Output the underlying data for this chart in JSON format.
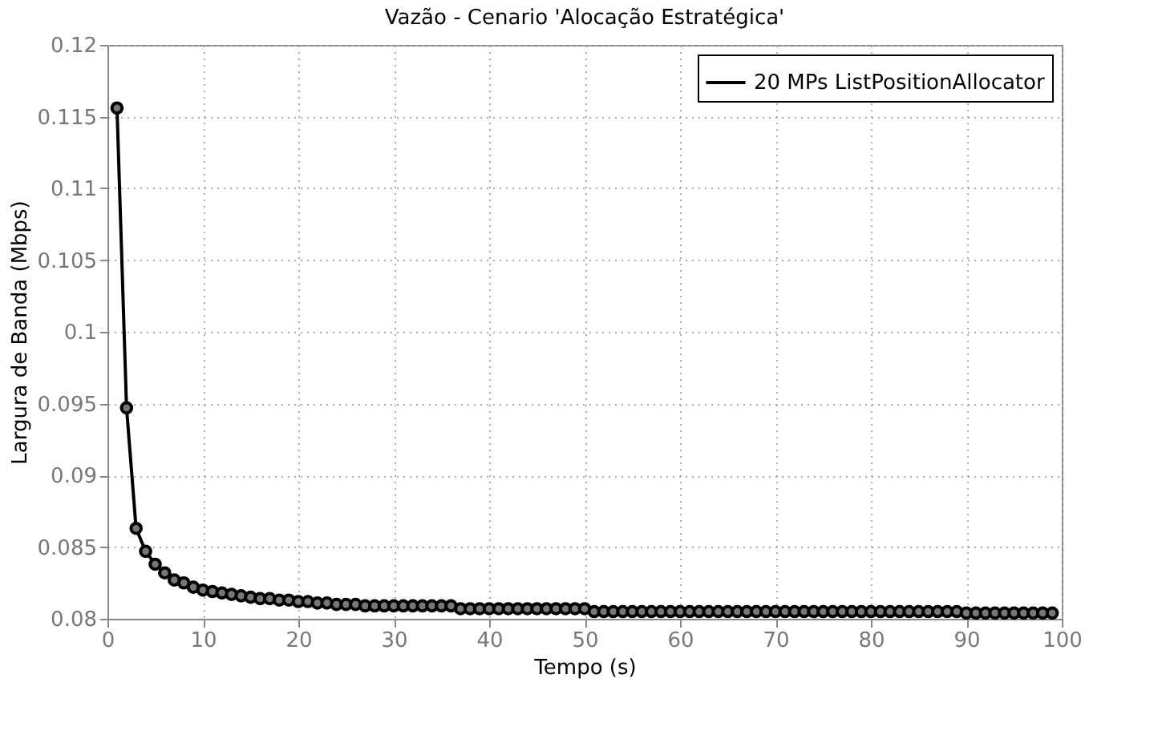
{
  "chart_data": {
    "type": "line",
    "title": "Vazão - Cenario 'Alocação Estratégica'",
    "xlabel": "Tempo (s)",
    "ylabel": "Largura de Banda (Mbps)",
    "x": [
      1,
      2,
      3,
      4,
      5,
      6,
      7,
      8,
      9,
      10,
      11,
      12,
      13,
      14,
      15,
      16,
      17,
      18,
      19,
      20,
      21,
      22,
      23,
      24,
      25,
      26,
      27,
      28,
      29,
      30,
      31,
      32,
      33,
      34,
      35,
      36,
      37,
      38,
      39,
      40,
      41,
      42,
      43,
      44,
      45,
      46,
      47,
      48,
      49,
      50,
      51,
      52,
      53,
      54,
      55,
      56,
      57,
      58,
      59,
      60,
      61,
      62,
      63,
      64,
      65,
      66,
      67,
      68,
      69,
      70,
      71,
      72,
      73,
      74,
      75,
      76,
      77,
      78,
      79,
      80,
      81,
      82,
      83,
      84,
      85,
      86,
      87,
      88,
      89,
      90,
      91,
      92,
      93,
      94,
      95,
      96,
      97,
      98,
      99
    ],
    "series": [
      {
        "name": "20 MPs ListPositionAllocator",
        "color": "#000000",
        "values": [
          0.1156,
          0.0947,
          0.0863,
          0.0847,
          0.0838,
          0.0832,
          0.0827,
          0.0825,
          0.0822,
          0.082,
          0.0819,
          0.0818,
          0.0817,
          0.0816,
          0.0815,
          0.0814,
          0.0814,
          0.0813,
          0.0813,
          0.0812,
          0.0812,
          0.0811,
          0.0811,
          0.081,
          0.081,
          0.081,
          0.0809,
          0.0809,
          0.0809,
          0.0809,
          0.0809,
          0.0809,
          0.0809,
          0.0809,
          0.0809,
          0.0809,
          0.0807,
          0.0807,
          0.0807,
          0.0807,
          0.0807,
          0.0807,
          0.0807,
          0.0807,
          0.0807,
          0.0807,
          0.0807,
          0.0807,
          0.0807,
          0.0807,
          0.0805,
          0.0805,
          0.0805,
          0.0805,
          0.0805,
          0.0805,
          0.0805,
          0.0805,
          0.0805,
          0.0805,
          0.0805,
          0.0805,
          0.0805,
          0.0805,
          0.0805,
          0.0805,
          0.0805,
          0.0805,
          0.0805,
          0.0805,
          0.0805,
          0.0805,
          0.0805,
          0.0805,
          0.0805,
          0.0805,
          0.0805,
          0.0805,
          0.0805,
          0.0805,
          0.0805,
          0.0805,
          0.0805,
          0.0805,
          0.0805,
          0.0805,
          0.0805,
          0.0805,
          0.0805,
          0.0804,
          0.0804,
          0.0804,
          0.0804,
          0.0804,
          0.0804,
          0.0804,
          0.0804,
          0.0804,
          0.0804
        ]
      }
    ],
    "xlim": [
      0,
      100
    ],
    "xticks": [
      0,
      10,
      20,
      30,
      40,
      50,
      60,
      70,
      80,
      90,
      100
    ],
    "ylim": [
      0.08,
      0.12
    ],
    "yticks": [
      0.08,
      0.085,
      0.09,
      0.095,
      0.1,
      0.105,
      0.11,
      0.115,
      0.12
    ],
    "grid": true,
    "legend": "top right",
    "marker": "circle",
    "line_style": "solid"
  }
}
